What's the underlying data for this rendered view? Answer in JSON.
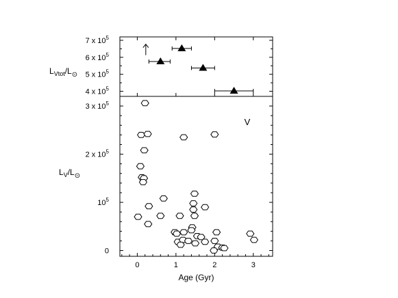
{
  "chart_data": [
    {
      "type": "scatter",
      "panel": "top",
      "marker": "filled-triangle",
      "ylabel": "L",
      "ylabel_sub": "Vtot",
      "ylabel_tail": "/L",
      "ylabel_sun_sub": "⊙",
      "xlim": [
        -0.45,
        3.5
      ],
      "ylim": [
        370000,
        720000
      ],
      "yticks": [
        {
          "value": 400000,
          "label": "4 x 10",
          "exp": "5"
        },
        {
          "value": 500000,
          "label": "5 x 10",
          "exp": "5"
        },
        {
          "value": 600000,
          "label": "6 x 10",
          "exp": "5"
        },
        {
          "value": 700000,
          "label": "7 x 10",
          "exp": "5"
        }
      ],
      "points": [
        {
          "x": 0.6,
          "y": 575000,
          "xerr": [
            0.3,
            0.25
          ]
        },
        {
          "x": 1.15,
          "y": 652000,
          "xerr": [
            0.25,
            0.25
          ]
        },
        {
          "x": 1.7,
          "y": 537000,
          "xerr": [
            0.3,
            0.3
          ]
        },
        {
          "x": 2.5,
          "y": 402000,
          "xerr": [
            0.5,
            0.5
          ]
        }
      ],
      "lower_limit_arrow": {
        "x": 0.22,
        "y": 645000
      }
    },
    {
      "type": "scatter",
      "panel": "bottom",
      "marker": "open-hexagon",
      "annotation": "V",
      "xlabel": "Age (Gyr)",
      "ylabel": "L",
      "ylabel_sub": "V",
      "ylabel_tail": "/L",
      "ylabel_sun_sub": "⊙",
      "xlim": [
        -0.45,
        3.5
      ],
      "ylim": [
        -12000,
        320000
      ],
      "xticks": [
        {
          "value": 0,
          "label": "0"
        },
        {
          "value": 1,
          "label": "1"
        },
        {
          "value": 2,
          "label": "2"
        },
        {
          "value": 3,
          "label": "3"
        }
      ],
      "yticks": [
        {
          "value": 0,
          "label": "0",
          "exp": ""
        },
        {
          "value": 100000,
          "label": "10",
          "exp": "5"
        },
        {
          "value": 200000,
          "label": "2 x 10",
          "exp": "5"
        },
        {
          "value": 300000,
          "label": "3 x 10",
          "exp": "5"
        }
      ],
      "points": [
        {
          "x": 0.2,
          "y": 306000
        },
        {
          "x": 0.1,
          "y": 240000
        },
        {
          "x": 0.27,
          "y": 242000
        },
        {
          "x": 0.18,
          "y": 208000
        },
        {
          "x": 0.08,
          "y": 175000
        },
        {
          "x": 0.12,
          "y": 152000
        },
        {
          "x": 0.17,
          "y": 150000
        },
        {
          "x": 0.15,
          "y": 142000
        },
        {
          "x": 1.2,
          "y": 235000
        },
        {
          "x": 2.0,
          "y": 241000
        },
        {
          "x": 0.3,
          "y": 92000
        },
        {
          "x": 0.02,
          "y": 70000
        },
        {
          "x": 0.28,
          "y": 55000
        },
        {
          "x": 0.6,
          "y": 72000
        },
        {
          "x": 0.68,
          "y": 108000
        },
        {
          "x": 1.48,
          "y": 118000
        },
        {
          "x": 1.45,
          "y": 98000
        },
        {
          "x": 1.75,
          "y": 90000
        },
        {
          "x": 1.45,
          "y": 85000
        },
        {
          "x": 1.1,
          "y": 72000
        },
        {
          "x": 1.48,
          "y": 72000
        },
        {
          "x": 1.42,
          "y": 48000
        },
        {
          "x": 1.4,
          "y": 42000
        },
        {
          "x": 0.97,
          "y": 38000
        },
        {
          "x": 1.02,
          "y": 35000
        },
        {
          "x": 1.2,
          "y": 38000
        },
        {
          "x": 1.55,
          "y": 30000
        },
        {
          "x": 1.65,
          "y": 28000
        },
        {
          "x": 1.05,
          "y": 18000
        },
        {
          "x": 1.18,
          "y": 22000
        },
        {
          "x": 1.32,
          "y": 20000
        },
        {
          "x": 1.12,
          "y": 12000
        },
        {
          "x": 1.5,
          "y": 15000
        },
        {
          "x": 1.75,
          "y": 18000
        },
        {
          "x": 2.05,
          "y": 38000
        },
        {
          "x": 2.0,
          "y": 20000
        },
        {
          "x": 2.08,
          "y": 8000
        },
        {
          "x": 2.2,
          "y": 6000
        },
        {
          "x": 2.25,
          "y": 5000
        },
        {
          "x": 1.98,
          "y": 0
        },
        {
          "x": 2.92,
          "y": 35000
        },
        {
          "x": 3.02,
          "y": 22000
        }
      ]
    }
  ]
}
